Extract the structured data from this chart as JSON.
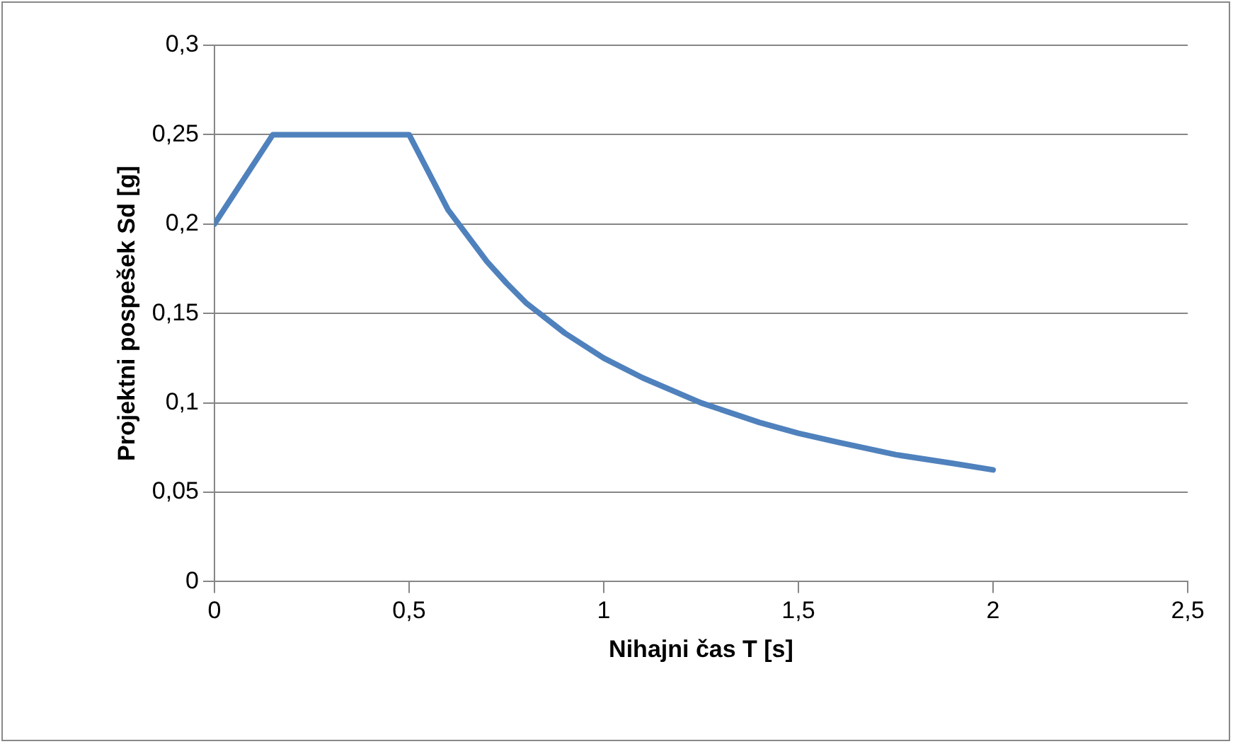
{
  "chart_data": {
    "type": "line",
    "xlabel": "Nihajni čas T [s]",
    "ylabel": "Projektni pospešek Sd [g]",
    "x": [
      0,
      0.15,
      0.5,
      0.6,
      0.7,
      0.75,
      0.8,
      0.9,
      1,
      1.1,
      1.25,
      1.4,
      1.5,
      1.6,
      1.75,
      1.9,
      2
    ],
    "series": [
      {
        "color": "#4f81bd",
        "values": [
          0.2,
          0.25,
          0.25,
          0.208,
          0.179,
          0.167,
          0.156,
          0.139,
          0.125,
          0.114,
          0.1,
          0.089,
          0.083,
          0.078,
          0.071,
          0.066,
          0.0625
        ]
      }
    ],
    "xlim": [
      0,
      2.5
    ],
    "xticks": [
      0,
      {
        "value": 0.5,
        "label": "0,5"
      },
      1,
      {
        "value": 1.5,
        "label": "1,5"
      },
      2,
      {
        "value": 2.5,
        "label": "2,5"
      }
    ],
    "ylim": [
      0,
      0.3
    ],
    "yticks": [
      0,
      {
        "value": 0.05,
        "label": "0,05"
      },
      {
        "value": 0.1,
        "label": "0,1"
      },
      {
        "value": 0.15,
        "label": "0,15"
      },
      {
        "value": 0.2,
        "label": "0,2"
      },
      {
        "value": 0.25,
        "label": "0,25"
      },
      {
        "value": 0.3,
        "label": "0,3"
      }
    ],
    "grid": "y",
    "legend": false,
    "marker": "none",
    "line_style": "solid"
  }
}
